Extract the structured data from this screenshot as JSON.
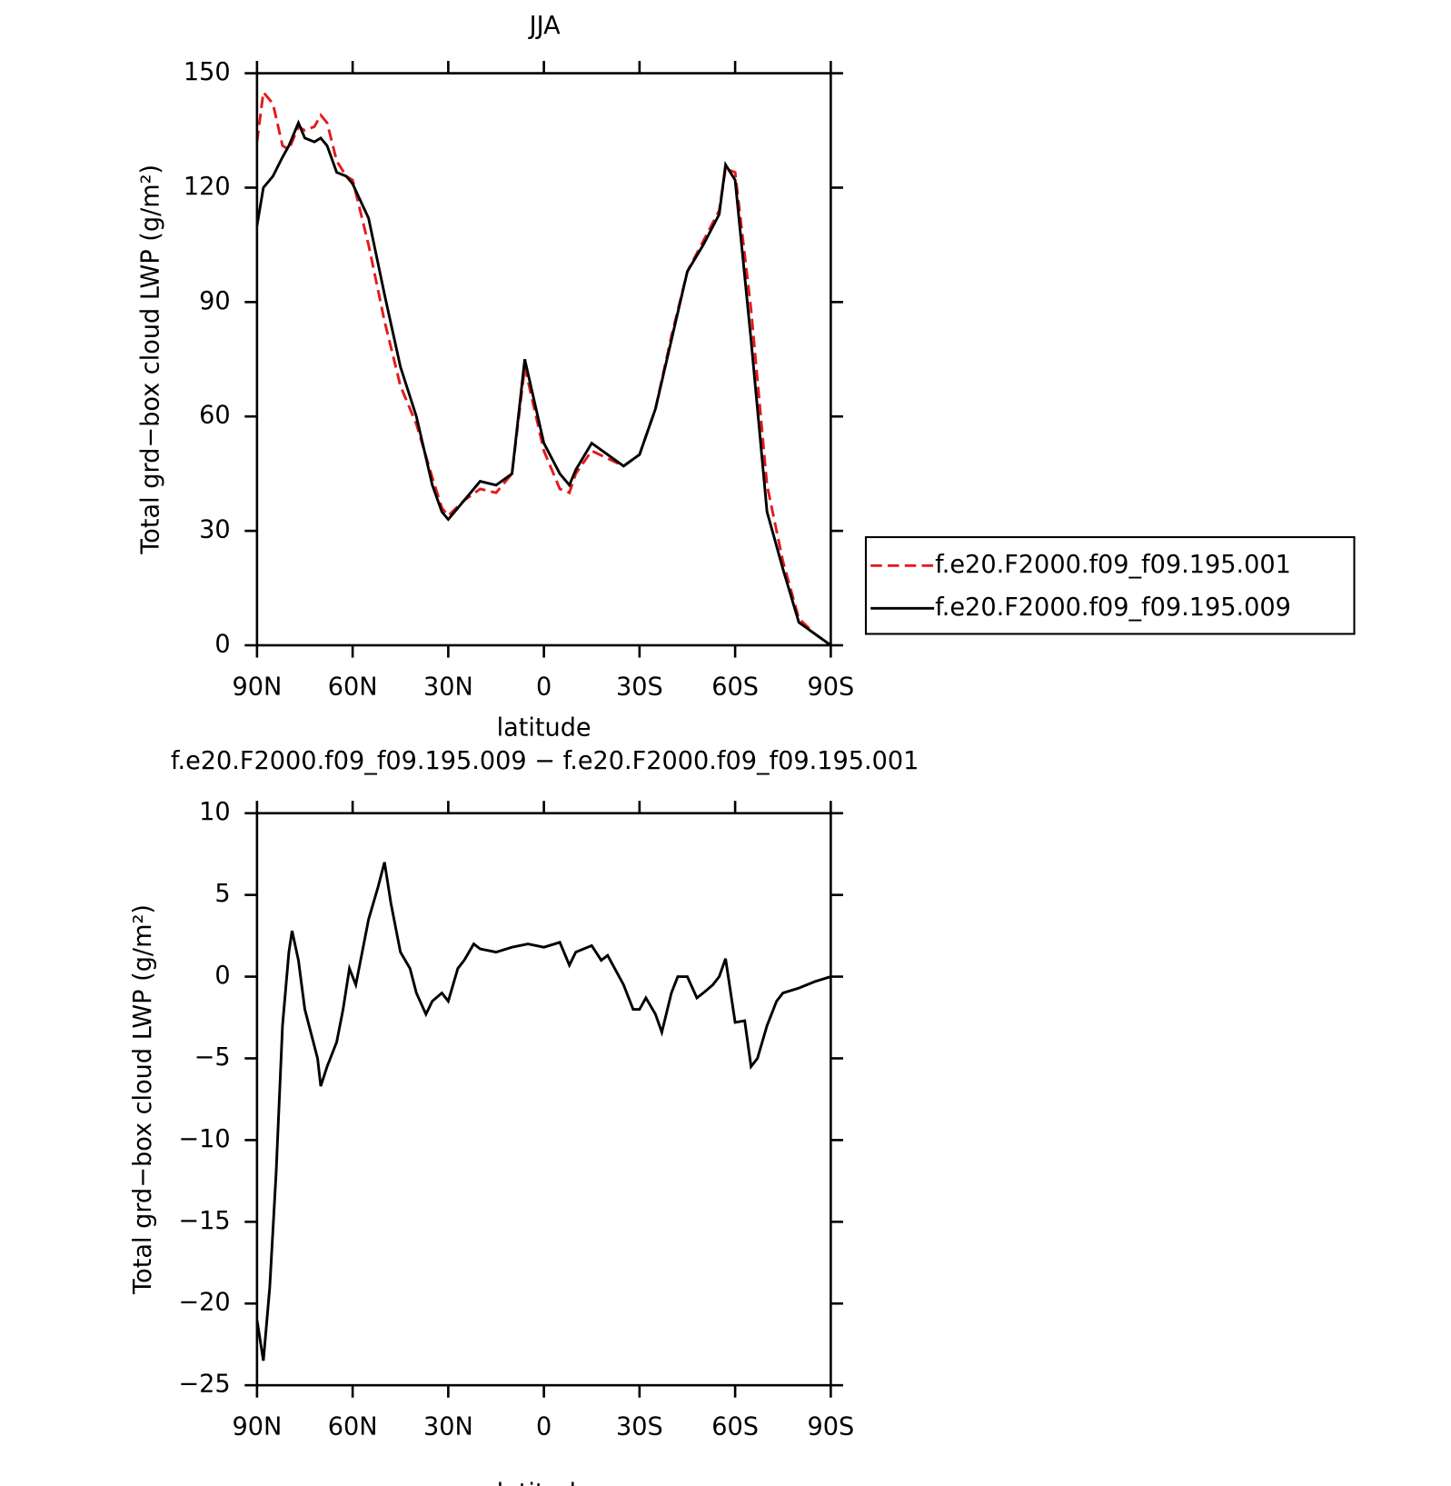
{
  "chart_data": [
    {
      "type": "line",
      "title": "JJA",
      "xlabel": "latitude",
      "ylabel": "Total grd−box cloud LWP (g/m²)",
      "x": [
        90,
        88,
        85,
        82,
        80,
        77,
        75,
        72,
        70,
        68,
        65,
        62,
        60,
        55,
        50,
        45,
        40,
        35,
        32,
        30,
        25,
        20,
        15,
        10,
        6,
        0,
        -5,
        -8,
        -10,
        -15,
        -20,
        -25,
        -30,
        -35,
        -40,
        -45,
        -50,
        -55,
        -57,
        -60,
        -65,
        -70,
        -75,
        -80,
        -85,
        -90
      ],
      "series": [
        {
          "name": "f.e20.F2000.f09_f09.195.001",
          "color": "#e41a1c",
          "line_style": "dashed",
          "values": [
            132,
            145,
            142,
            131,
            130,
            136,
            135,
            136,
            139,
            137,
            127,
            123,
            122,
            105,
            85,
            68,
            58,
            44,
            36,
            34,
            38,
            41,
            40,
            45,
            73,
            51,
            41,
            40,
            45,
            51,
            49,
            47,
            50,
            62,
            81,
            98,
            106,
            114,
            125,
            124,
            88,
            42,
            22,
            7,
            3,
            0
          ]
        },
        {
          "name": "f.e20.F2000.f09_f09.195.009",
          "color": "#000000",
          "line_style": "solid",
          "values": [
            110,
            120,
            123,
            128,
            131,
            137,
            133,
            132,
            133,
            131,
            124,
            123,
            121,
            112,
            92,
            73,
            60,
            42,
            35,
            33,
            38,
            43,
            42,
            45,
            75,
            53,
            45,
            42,
            46,
            53,
            50,
            47,
            50,
            62,
            80,
            98,
            105,
            113,
            126,
            122,
            80,
            35,
            20,
            6,
            3,
            0
          ]
        }
      ],
      "xlim": [
        90,
        -90
      ],
      "xticks": [
        {
          "value": 90,
          "label": "90N"
        },
        {
          "value": 60,
          "label": "60N"
        },
        {
          "value": 30,
          "label": "30N"
        },
        0,
        {
          "value": -30,
          "label": "30S"
        },
        {
          "value": -60,
          "label": "60S"
        },
        {
          "value": -90,
          "label": "90S"
        }
      ],
      "ylim": [
        0,
        150
      ],
      "yticks": [
        0,
        30,
        60,
        90,
        120,
        150
      ],
      "legend": "right"
    },
    {
      "type": "line",
      "title": "f.e20.F2000.f09_f09.195.009 − f.e20.F2000.f09_f09.195.001",
      "xlabel": "latitude",
      "ylabel": "Total grd−box cloud LWP (g/m²)",
      "x": [
        90,
        88,
        86,
        84,
        82,
        80,
        79,
        77,
        75,
        73,
        71,
        70,
        68,
        66,
        65,
        63,
        61,
        59,
        57,
        55,
        52,
        50,
        48,
        45,
        42,
        40,
        37,
        35,
        32,
        30,
        27,
        25,
        22,
        20,
        15,
        10,
        5,
        0,
        -5,
        -8,
        -10,
        -15,
        -18,
        -20,
        -25,
        -28,
        -30,
        -32,
        -35,
        -37,
        -40,
        -42,
        -45,
        -48,
        -50,
        -53,
        -55,
        -57,
        -60,
        -63,
        -65,
        -67,
        -70,
        -73,
        -75,
        -80,
        -85,
        -90
      ],
      "series": [
        {
          "color": "#000000",
          "line_style": "solid",
          "values": [
            -21,
            -23.5,
            -19,
            -12,
            -3,
            1.5,
            2.8,
            1,
            -2,
            -3.5,
            -5,
            -6.7,
            -5.5,
            -4.5,
            -4,
            -2,
            0.5,
            -0.5,
            1.5,
            3.5,
            5.5,
            7,
            4.5,
            1.5,
            0.5,
            -1,
            -2.3,
            -1.5,
            -1,
            -1.5,
            0.5,
            1,
            2,
            1.7,
            1.5,
            1.8,
            2,
            1.8,
            2.1,
            0.7,
            1.5,
            1.9,
            1,
            1.3,
            -0.5,
            -2,
            -2,
            -1.3,
            -2.3,
            -3.4,
            -1,
            0,
            0,
            -1.3,
            -1,
            -0.5,
            0,
            1.1,
            -2.8,
            -2.7,
            -5.5,
            -5,
            -3,
            -1.5,
            -1,
            -0.7,
            -0.3,
            0
          ]
        }
      ],
      "xlim": [
        90,
        -90
      ],
      "xticks": [
        {
          "value": 90,
          "label": "90N"
        },
        {
          "value": 60,
          "label": "60N"
        },
        {
          "value": 30,
          "label": "30N"
        },
        0,
        {
          "value": -30,
          "label": "30S"
        },
        {
          "value": -60,
          "label": "60S"
        },
        {
          "value": -90,
          "label": "90S"
        }
      ],
      "ylim": [
        -25,
        10
      ],
      "yticks": [
        {
          "value": -25,
          "label": "−25"
        },
        {
          "value": -20,
          "label": "−20"
        },
        {
          "value": -15,
          "label": "−15"
        },
        {
          "value": -10,
          "label": "−10"
        },
        {
          "value": -5,
          "label": "−5"
        },
        0,
        5,
        10
      ]
    }
  ]
}
